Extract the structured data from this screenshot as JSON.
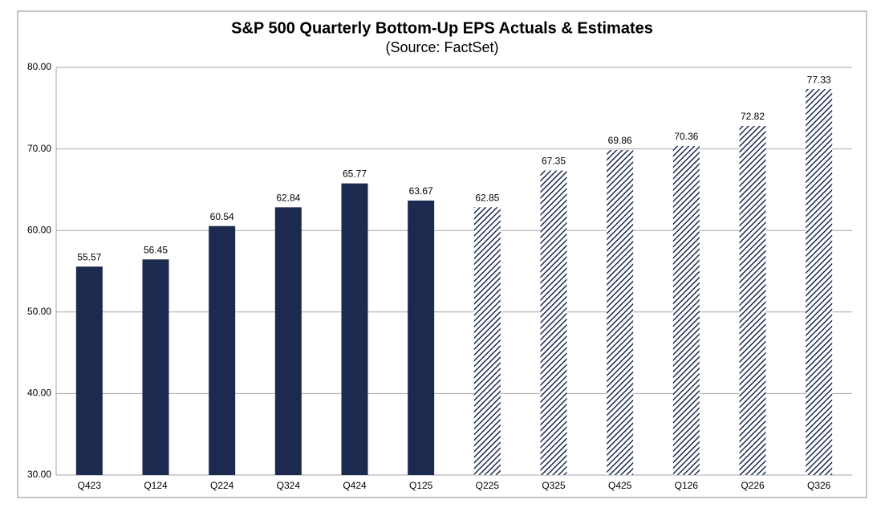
{
  "chart_data": {
    "type": "bar",
    "title": "S&P 500 Quarterly Bottom-Up EPS Actuals & Estimates",
    "subtitle": "(Source: FactSet)",
    "categories": [
      "Q423",
      "Q124",
      "Q224",
      "Q324",
      "Q424",
      "Q125",
      "Q225",
      "Q325",
      "Q425",
      "Q126",
      "Q226",
      "Q326"
    ],
    "values": [
      55.57,
      56.45,
      60.54,
      62.84,
      65.77,
      63.67,
      62.85,
      67.35,
      69.86,
      70.36,
      72.82,
      77.33
    ],
    "bar_styles": [
      "solid",
      "solid",
      "solid",
      "solid",
      "solid",
      "solid",
      "hatched",
      "hatched",
      "hatched",
      "hatched",
      "hatched",
      "hatched"
    ],
    "color": "#1b2a4e",
    "ylim": [
      30,
      80
    ],
    "yticks": [
      {
        "value": 30,
        "label": "30.00"
      },
      {
        "value": 40,
        "label": "40.00"
      },
      {
        "value": 50,
        "label": "50.00"
      },
      {
        "value": 60,
        "label": "60.00"
      },
      {
        "value": 70,
        "label": "70.00"
      },
      {
        "value": 80,
        "label": "80.00"
      }
    ],
    "grid": true
  }
}
